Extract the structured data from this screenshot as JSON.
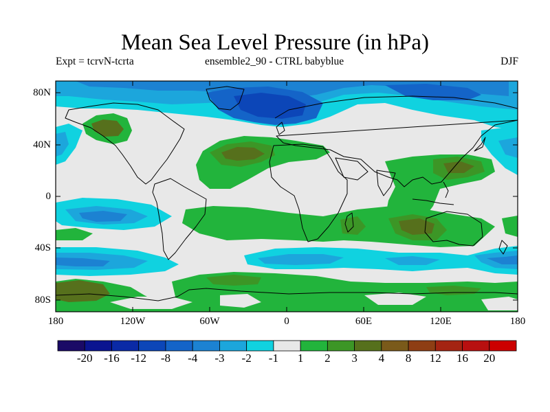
{
  "title": "Mean Sea Level Pressure (in hPa)",
  "subtitle_left": "Expt = tcrvN-tcrta",
  "subtitle_center": "ensemble2_90 - CTRL babyblue",
  "season": "DJF",
  "lat_labels": [
    "80N",
    "40N",
    "0",
    "40S",
    "80S"
  ],
  "lon_labels": [
    "180",
    "120W",
    "60W",
    "0",
    "60E",
    "120E",
    "180"
  ],
  "colorbar": {
    "colors": [
      "#1a0a66",
      "#0a1490",
      "#0a2aa6",
      "#0c46b8",
      "#1464c8",
      "#1c82d2",
      "#1ca6dc",
      "#10d2e0",
      "#e8e8e8",
      "#22b43c",
      "#3c9626",
      "#56701c",
      "#7a5a1a",
      "#8e3e14",
      "#a42412",
      "#b81010",
      "#cc0000"
    ],
    "labels": [
      "-20",
      "-16",
      "-12",
      "-8",
      "-4",
      "-3",
      "-2",
      "-1",
      "1",
      "2",
      "3",
      "4",
      "8",
      "12",
      "16",
      "20"
    ]
  }
}
